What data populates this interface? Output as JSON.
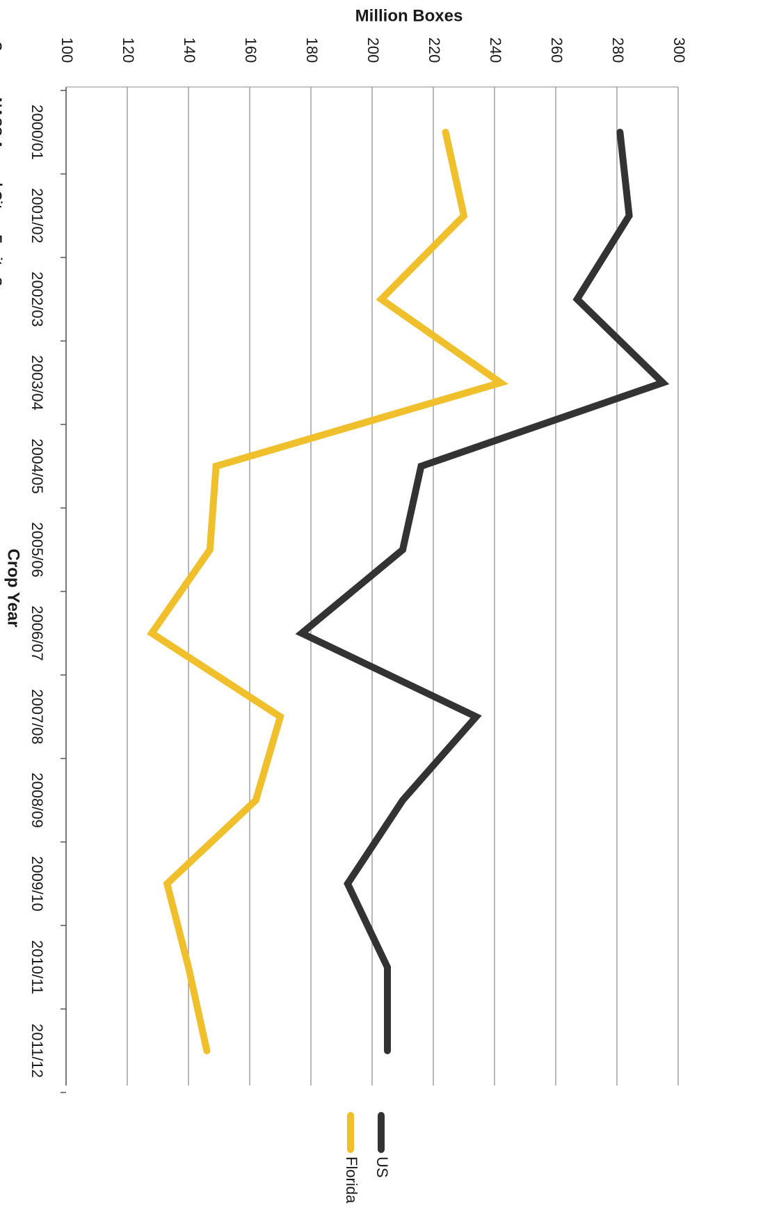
{
  "chart_data": {
    "type": "line",
    "xlabel": "Crop Year",
    "ylabel": "Million Boxes",
    "ylim": [
      100,
      300
    ],
    "yticks": [
      100,
      120,
      140,
      160,
      180,
      200,
      220,
      240,
      260,
      280,
      300
    ],
    "categories": [
      "2000/01",
      "2001/02",
      "2002/03",
      "2003/04",
      "2004/05",
      "2005/06",
      "2006/07",
      "2007/08",
      "2008/09",
      "2009/10",
      "2010/11",
      "2011/12"
    ],
    "series": [
      {
        "name": "US",
        "color": "#333333",
        "values": [
          281,
          284,
          267,
          295,
          216,
          210,
          177,
          234,
          210,
          192,
          205,
          205
        ]
      },
      {
        "name": "Florida",
        "color": "#f0bf2c",
        "values": [
          224,
          230,
          203,
          242,
          149,
          147,
          128,
          170,
          162,
          133,
          140,
          146
        ]
      }
    ],
    "grid": true,
    "legend": "right",
    "orientation": "rotated 90 degrees clockwise",
    "source_note": "Source: NASS Annual Citrus Fruits Summary"
  }
}
